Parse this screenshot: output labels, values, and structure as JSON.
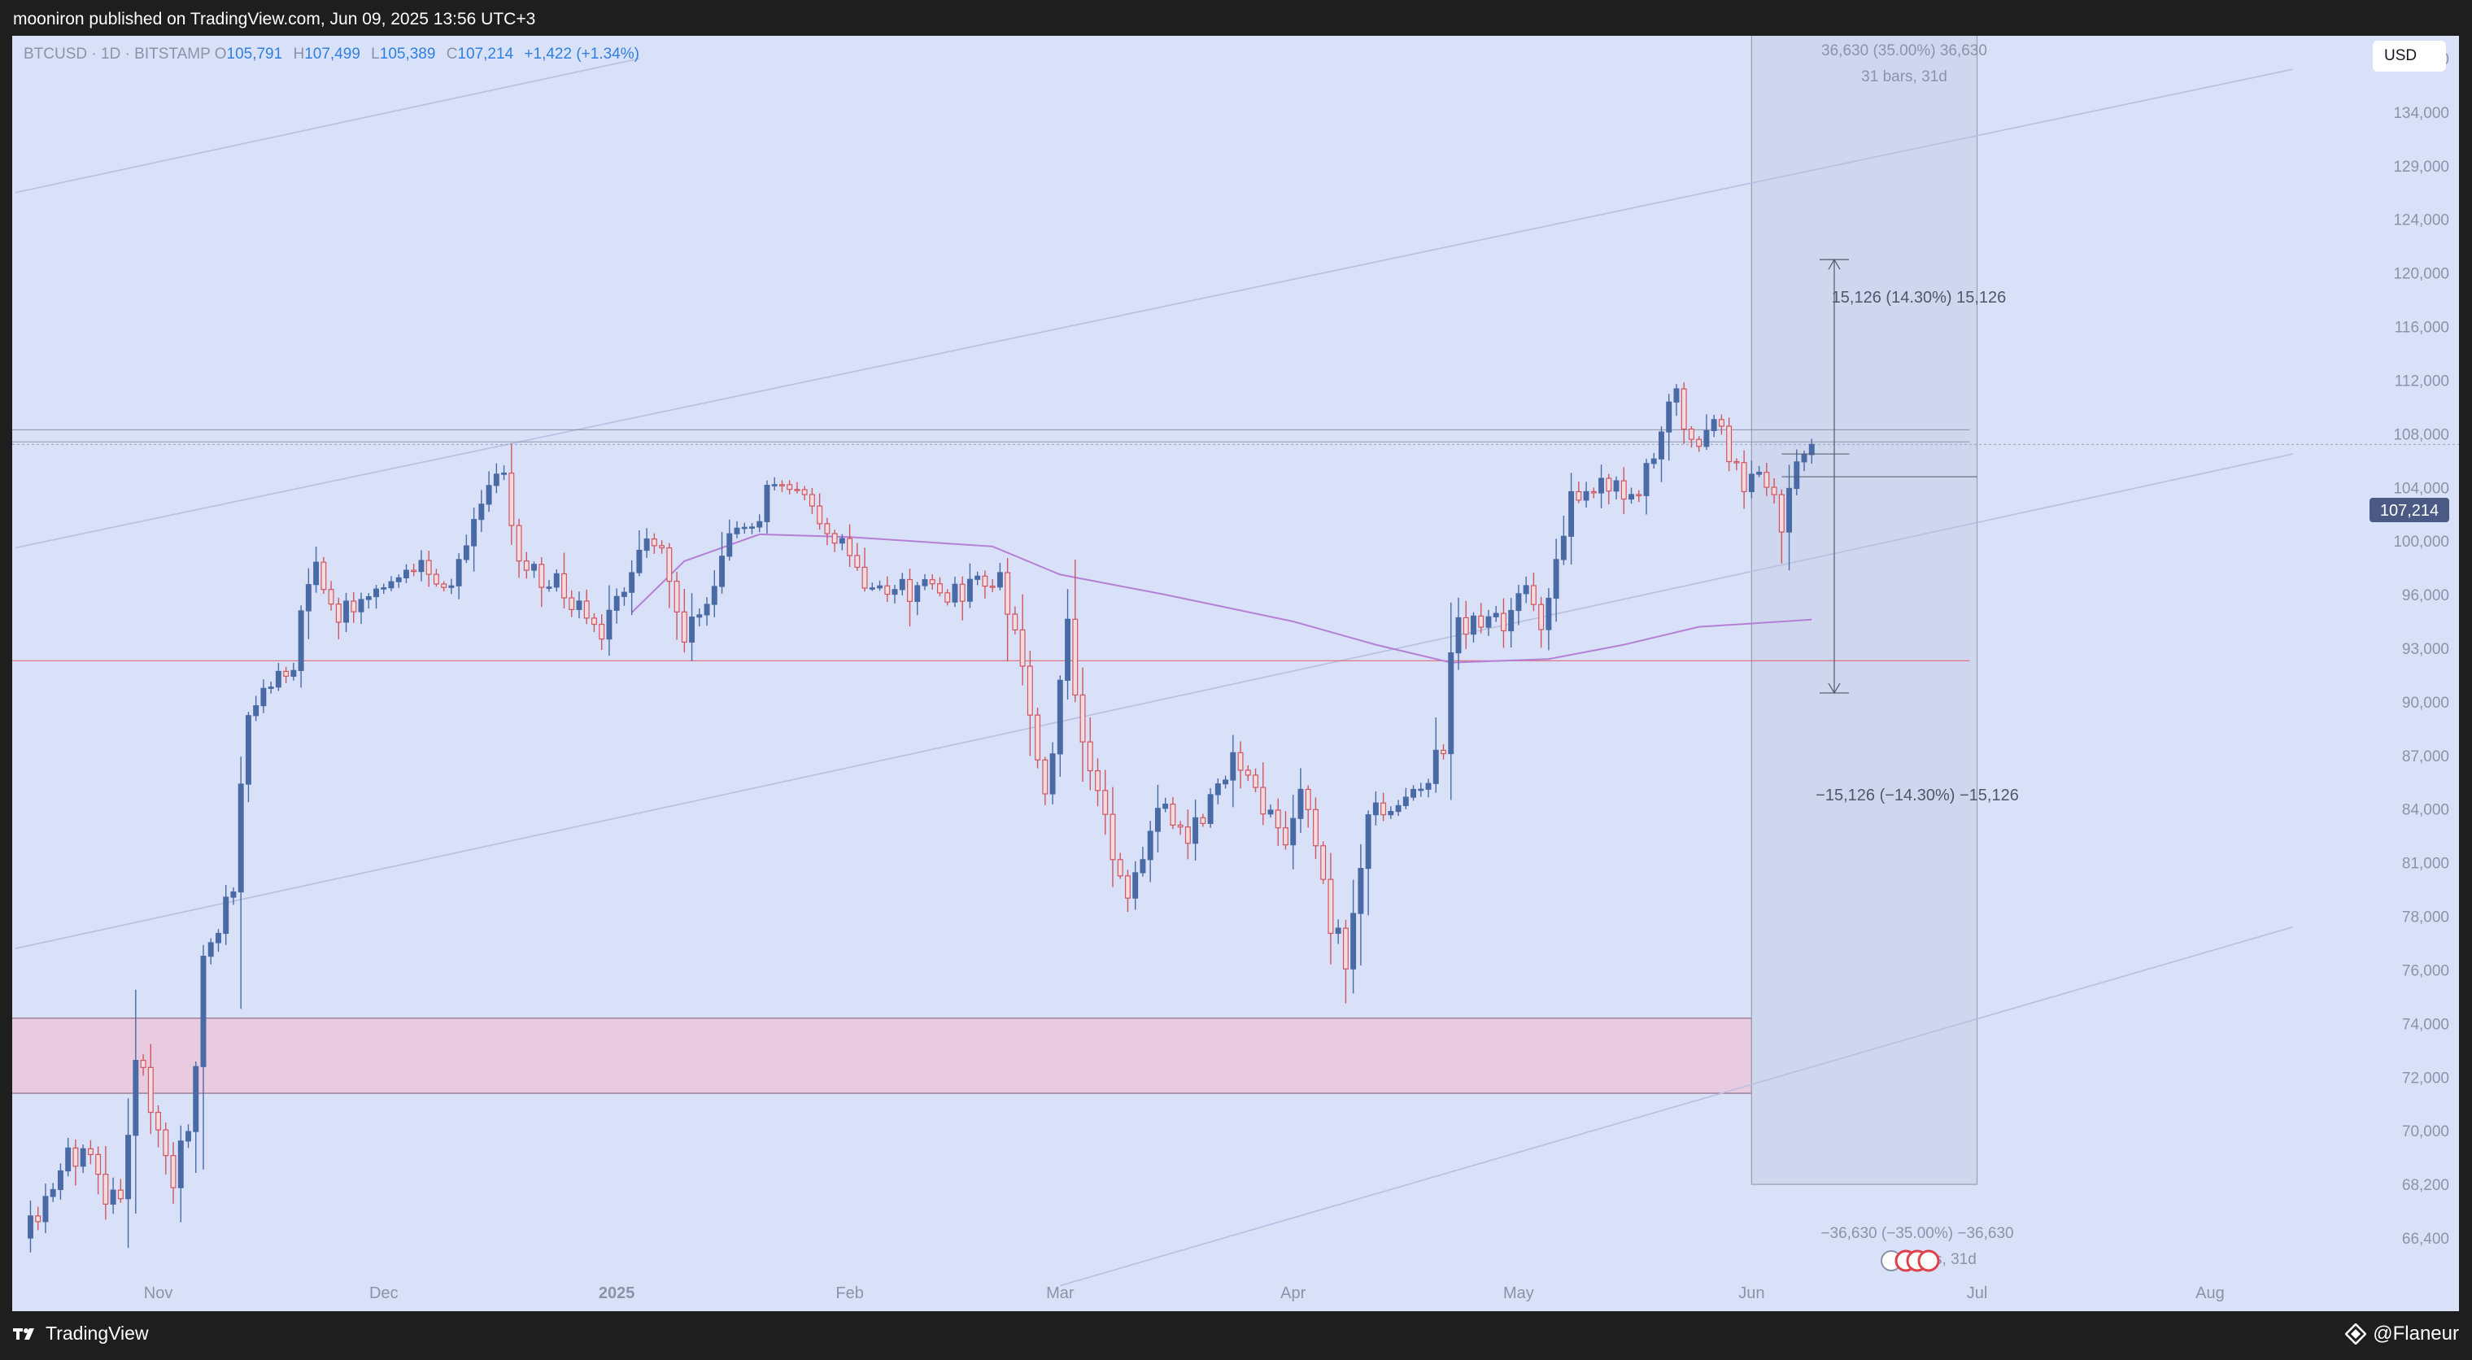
{
  "header": {
    "published_by": "mooniron published on TradingView.com, Jun 09, 2025 13:56 UTC+3"
  },
  "footer": {
    "brand": "TradingView",
    "author": "@Flaneur"
  },
  "legend": {
    "symbol": "BTCUSD · 1D · BITSTAMP",
    "open_key": "O",
    "open": "105,791",
    "high_key": "H",
    "high": "107,499",
    "low_key": "L",
    "low": "105,389",
    "close_key": "C",
    "close": "107,214",
    "change": "+1,422 (+1.34%)"
  },
  "currency": "USD",
  "last_price_label": "107,214",
  "annotations": {
    "range_top": "36,630 (35.00%) 36,630",
    "range_top_bars": "31 bars, 31d",
    "up_move": "15,126 (14.30%) 15,126",
    "down_move": "−15,126 (−14.30%) −15,126",
    "range_bottom": "−36,630 (−35.00%) −36,630",
    "range_bottom_bars": "31 bars, 31d"
  },
  "colors": {
    "up": "#4a6aa5",
    "down_border": "#d2555e",
    "down_fill": "#f4dbe0",
    "ma": "#b67fd6",
    "support_line": "#e06470",
    "zone": "#e8cbe0"
  },
  "chart_data": {
    "type": "candlestick",
    "symbol": "BTCUSD",
    "interval": "1D",
    "exchange": "BITSTAMP",
    "y_ticks": [
      66400,
      68200,
      70000,
      72000,
      74000,
      76000,
      78000,
      81000,
      84000,
      87000,
      90000,
      93000,
      96000,
      100000,
      104000,
      108000,
      112000,
      116000,
      120000,
      124000,
      129000,
      134000,
      139000
    ],
    "y_tick_labels": [
      "66,400",
      "68,200",
      "70,000",
      "72,000",
      "74,000",
      "76,000",
      "78,000",
      "81,000",
      "84,000",
      "87,000",
      "90,000",
      "93,000",
      "96,000",
      "100,000",
      "104,000",
      "108,000",
      "112,000",
      "116,000",
      "120,000",
      "124,000",
      "129,000",
      "134,000",
      "139,000"
    ],
    "x_ticks": [
      "Nov",
      "Dec",
      "2025",
      "Feb",
      "Mar",
      "Apr",
      "May",
      "Jun",
      "Jul",
      "Aug"
    ],
    "x_range": [
      "2024-10-13",
      "2025-08-22"
    ],
    "last_close": 107214,
    "anchors": [
      [
        "2024-10-15",
        67000
      ],
      [
        "2024-10-21",
        69200
      ],
      [
        "2024-10-27",
        67600
      ],
      [
        "2024-10-29",
        72500
      ],
      [
        "2024-11-03",
        68700
      ],
      [
        "2024-11-05",
        69500
      ],
      [
        "2024-11-07",
        76000
      ],
      [
        "2024-11-11",
        80000
      ],
      [
        "2024-11-13",
        90000
      ],
      [
        "2024-11-19",
        92300
      ],
      [
        "2024-11-22",
        98500
      ],
      [
        "2024-11-25",
        94500
      ],
      [
        "2024-11-28",
        95900
      ],
      [
        "2024-12-05",
        98500
      ],
      [
        "2024-12-10",
        96500
      ],
      [
        "2024-12-16",
        105000
      ],
      [
        "2024-12-17",
        106000
      ],
      [
        "2024-12-19",
        98000
      ],
      [
        "2024-12-24",
        97000
      ],
      [
        "2024-12-30",
        93500
      ],
      [
        "2025-01-06",
        100500
      ],
      [
        "2025-01-10",
        94000
      ],
      [
        "2025-01-14",
        96500
      ],
      [
        "2025-01-16",
        100000
      ],
      [
        "2025-01-20",
        102000
      ],
      [
        "2025-01-22",
        104500
      ],
      [
        "2025-01-25",
        103500
      ],
      [
        "2025-01-28",
        102000
      ],
      [
        "2025-02-02",
        97500
      ],
      [
        "2025-02-05",
        96500
      ],
      [
        "2025-02-16",
        96400
      ],
      [
        "2025-02-21",
        97500
      ],
      [
        "2025-02-24",
        91500
      ],
      [
        "2025-02-27",
        84500
      ],
      [
        "2025-03-02",
        94000
      ],
      [
        "2025-03-04",
        87000
      ],
      [
        "2025-03-10",
        79000
      ],
      [
        "2025-03-14",
        84000
      ],
      [
        "2025-03-18",
        82500
      ],
      [
        "2025-03-24",
        86500
      ],
      [
        "2025-03-28",
        84300
      ],
      [
        "2025-03-31",
        82500
      ],
      [
        "2025-04-02",
        85200
      ],
      [
        "2025-04-06",
        78000
      ],
      [
        "2025-04-08",
        76300
      ],
      [
        "2025-04-11",
        83500
      ],
      [
        "2025-04-16",
        84000
      ],
      [
        "2025-04-21",
        87500
      ],
      [
        "2025-04-22",
        93500
      ],
      [
        "2025-04-25",
        94700
      ],
      [
        "2025-04-29",
        94200
      ],
      [
        "2025-05-02",
        96500
      ],
      [
        "2025-05-04",
        94500
      ],
      [
        "2025-05-08",
        103000
      ],
      [
        "2025-05-13",
        104000
      ],
      [
        "2025-05-17",
        103300
      ],
      [
        "2025-05-22",
        111500
      ],
      [
        "2025-05-24",
        107000
      ],
      [
        "2025-05-27",
        109000
      ],
      [
        "2025-05-31",
        104000
      ],
      [
        "2025-06-02",
        105500
      ],
      [
        "2025-06-05",
        101500
      ],
      [
        "2025-06-06",
        104500
      ],
      [
        "2025-06-09",
        107214
      ]
    ],
    "moving_average": [
      [
        "2025-01-03",
        95000
      ],
      [
        "2025-01-10",
        98500
      ],
      [
        "2025-01-20",
        100500
      ],
      [
        "2025-02-01",
        100300
      ],
      [
        "2025-02-20",
        99600
      ],
      [
        "2025-03-01",
        97500
      ],
      [
        "2025-03-15",
        96000
      ],
      [
        "2025-04-01",
        94500
      ],
      [
        "2025-04-12",
        93200
      ],
      [
        "2025-04-22",
        92200
      ],
      [
        "2025-05-05",
        92400
      ],
      [
        "2025-05-15",
        93200
      ],
      [
        "2025-05-25",
        94200
      ],
      [
        "2025-06-09",
        94600
      ]
    ],
    "horizontal_lines": [
      108300,
      107400,
      92300
    ],
    "support_line": 92300,
    "demand_zone": {
      "from": "2024-10-13",
      "to": "2025-06-01",
      "top": 74200,
      "bottom": 71400
    },
    "channel_lines": [
      {
        "from": [
          "2024-10-13",
          126500
        ],
        "to": [
          "2025-01-04",
          139000
        ]
      },
      {
        "from": [
          "2024-10-13",
          99500
        ],
        "to": [
          "2025-08-12",
          138000
        ]
      },
      {
        "from": [
          "2024-10-13",
          76800
        ],
        "to": [
          "2025-08-12",
          106500
        ]
      },
      {
        "from": [
          "2025-03-01",
          64800
        ],
        "to": [
          "2025-08-12",
          77600
        ]
      }
    ],
    "range_box": {
      "from": "2025-06-01",
      "to": "2025-07-01",
      "top": 142000,
      "bottom": 68200
    },
    "measure": {
      "date": "2025-06-12",
      "top": 121000,
      "bottom": 90500,
      "tick_left": "2025-06-05"
    }
  }
}
